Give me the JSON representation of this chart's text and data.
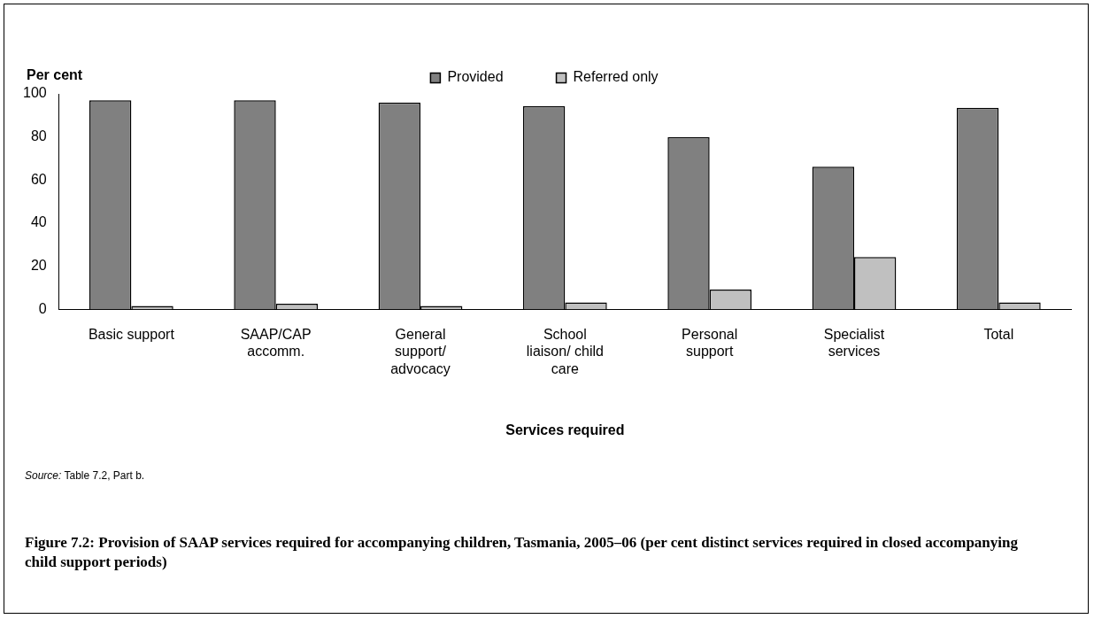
{
  "chart_data": {
    "type": "bar",
    "title": "Figure 7.2: Provision of SAAP services required for accompanying children, Tasmania, 2005–06 (per cent distinct services required in closed accompanying child support periods)",
    "xlabel": "Services required",
    "ylabel": "Per cent",
    "categories": [
      "Basic support",
      "SAAP/CAP accomm.",
      "General support/ advocacy",
      "School liaison/ child care",
      "Personal support",
      "Specialist services",
      "Total"
    ],
    "series": [
      {
        "name": "Provided",
        "color": "#808080",
        "values": [
          97,
          97,
          96,
          94.3,
          80,
          66.2,
          93.5
        ]
      },
      {
        "name": "Referred only",
        "color": "#c0c0c0",
        "values": [
          1.5,
          2.5,
          1.5,
          3.2,
          9.1,
          24.2,
          3.2
        ]
      }
    ],
    "ylim": [
      0,
      100
    ],
    "yticks": [
      0,
      20,
      40,
      60,
      80,
      100
    ],
    "grid": false,
    "legend": "top right",
    "annotations": [
      "Source: Table 7.2, Part b."
    ]
  }
}
